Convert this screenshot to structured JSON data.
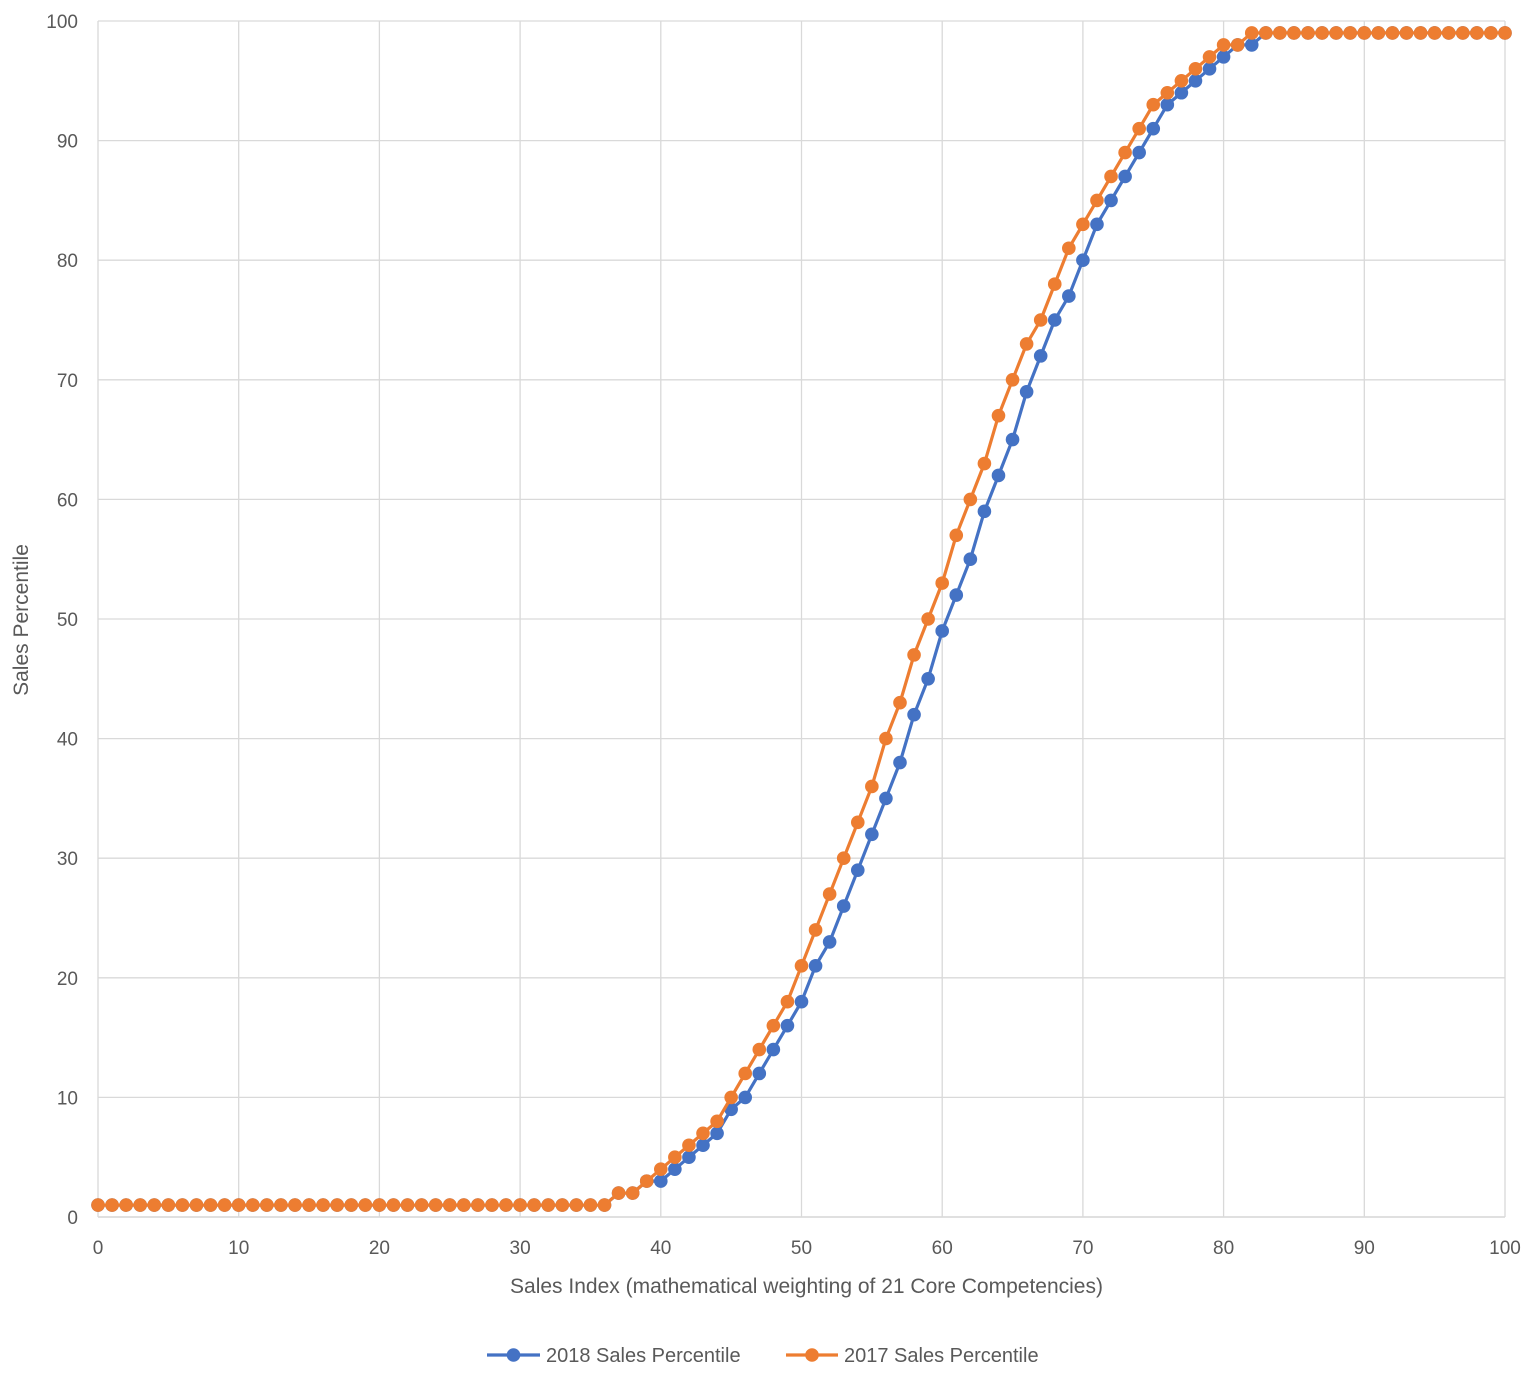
{
  "chart_data": {
    "type": "line",
    "title": "",
    "xlabel": "Sales Index (mathematical weighting of 21 Core Competencies)",
    "ylabel": "Sales Percentile",
    "xlim": [
      0,
      100
    ],
    "ylim": [
      0,
      100
    ],
    "xticks": [
      "0",
      "10",
      "20",
      "30",
      "40",
      "50",
      "60",
      "70",
      "80",
      "90",
      "100"
    ],
    "yticks": [
      "0",
      "10",
      "20",
      "30",
      "40",
      "50",
      "60",
      "70",
      "80",
      "90",
      "100"
    ],
    "grid": true,
    "legend_position": "bottom",
    "series": [
      {
        "name": "2018 Sales Percentile",
        "color": "#4472C4",
        "x": [
          0,
          1,
          2,
          3,
          4,
          5,
          6,
          7,
          8,
          9,
          10,
          11,
          12,
          13,
          14,
          15,
          16,
          17,
          18,
          19,
          20,
          21,
          22,
          23,
          24,
          25,
          26,
          27,
          28,
          29,
          30,
          31,
          32,
          33,
          34,
          35,
          36,
          37,
          38,
          39,
          40,
          41,
          42,
          43,
          44,
          45,
          46,
          47,
          48,
          49,
          50,
          51,
          52,
          53,
          54,
          55,
          56,
          57,
          58,
          59,
          60,
          61,
          62,
          63,
          64,
          65,
          66,
          67,
          68,
          69,
          70,
          71,
          72,
          73,
          74,
          75,
          76,
          77,
          78,
          79,
          80,
          81,
          82,
          83,
          84,
          85,
          86,
          87,
          88,
          89,
          90,
          91,
          92,
          93,
          94,
          95,
          96,
          97,
          98,
          99,
          100
        ],
        "y": [
          1,
          1,
          1,
          1,
          1,
          1,
          1,
          1,
          1,
          1,
          1,
          1,
          1,
          1,
          1,
          1,
          1,
          1,
          1,
          1,
          1,
          1,
          1,
          1,
          1,
          1,
          1,
          1,
          1,
          1,
          1,
          1,
          1,
          1,
          1,
          1,
          1,
          2,
          2,
          3,
          3,
          4,
          5,
          6,
          7,
          9,
          10,
          12,
          14,
          16,
          18,
          21,
          23,
          26,
          29,
          32,
          35,
          38,
          42,
          45,
          49,
          52,
          55,
          59,
          62,
          65,
          69,
          72,
          75,
          77,
          80,
          83,
          85,
          87,
          89,
          91,
          93,
          94,
          95,
          96,
          97,
          98,
          98,
          99,
          99,
          99,
          99,
          99,
          99,
          99,
          99,
          99,
          99,
          99,
          99,
          99,
          99,
          99,
          99,
          99,
          99
        ]
      },
      {
        "name": "2017 Sales Percentile",
        "color": "#ED7D31",
        "x": [
          0,
          1,
          2,
          3,
          4,
          5,
          6,
          7,
          8,
          9,
          10,
          11,
          12,
          13,
          14,
          15,
          16,
          17,
          18,
          19,
          20,
          21,
          22,
          23,
          24,
          25,
          26,
          27,
          28,
          29,
          30,
          31,
          32,
          33,
          34,
          35,
          36,
          37,
          38,
          39,
          40,
          41,
          42,
          43,
          44,
          45,
          46,
          47,
          48,
          49,
          50,
          51,
          52,
          53,
          54,
          55,
          56,
          57,
          58,
          59,
          60,
          61,
          62,
          63,
          64,
          65,
          66,
          67,
          68,
          69,
          70,
          71,
          72,
          73,
          74,
          75,
          76,
          77,
          78,
          79,
          80,
          81,
          82,
          83,
          84,
          85,
          86,
          87,
          88,
          89,
          90,
          91,
          92,
          93,
          94,
          95,
          96,
          97,
          98,
          99,
          100
        ],
        "y": [
          1,
          1,
          1,
          1,
          1,
          1,
          1,
          1,
          1,
          1,
          1,
          1,
          1,
          1,
          1,
          1,
          1,
          1,
          1,
          1,
          1,
          1,
          1,
          1,
          1,
          1,
          1,
          1,
          1,
          1,
          1,
          1,
          1,
          1,
          1,
          1,
          1,
          2,
          2,
          3,
          4,
          5,
          6,
          7,
          8,
          10,
          12,
          14,
          16,
          18,
          21,
          24,
          27,
          30,
          33,
          36,
          40,
          43,
          47,
          50,
          53,
          57,
          60,
          63,
          67,
          70,
          73,
          75,
          78,
          81,
          83,
          85,
          87,
          89,
          91,
          93,
          94,
          95,
          96,
          97,
          98,
          98,
          99,
          99,
          99,
          99,
          99,
          99,
          99,
          99,
          99,
          99,
          99,
          99,
          99,
          99,
          99,
          99,
          99,
          99,
          99
        ]
      }
    ]
  }
}
